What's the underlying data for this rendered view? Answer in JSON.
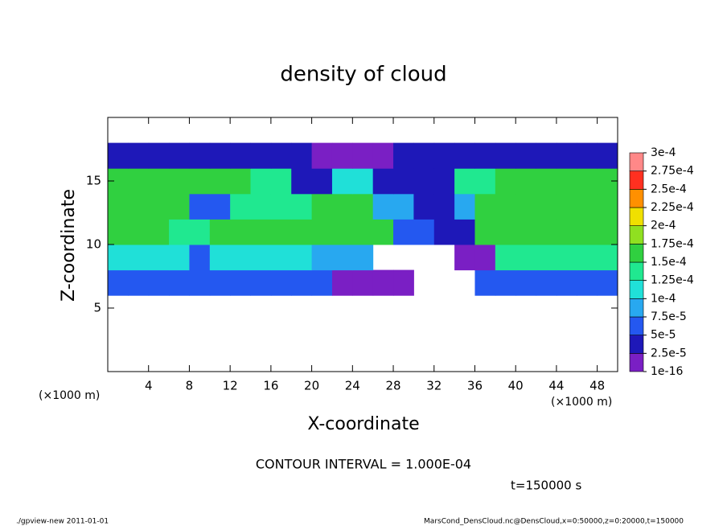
{
  "chart_data": {
    "type": "heatmap",
    "title": "density of cloud",
    "xlabel": "X-coordinate",
    "ylabel": "Z-coordinate",
    "x_unit_label": "(×1000 m)",
    "contour_note": "CONTOUR INTERVAL = 1.000E-04",
    "time_label": "t=150000 s",
    "footer_left": "./gpview-new  2011-01-01",
    "footer_right": "MarsCond_DensCloud.nc@DensCloud,x=0:50000,z=0:20000,t=150000",
    "xlim": [
      0,
      50
    ],
    "ylim": [
      0,
      20
    ],
    "xticks": [
      4,
      8,
      12,
      16,
      20,
      24,
      28,
      32,
      36,
      40,
      44,
      48
    ],
    "yticks": [
      5,
      10,
      15
    ],
    "x": [
      1,
      3,
      5,
      7,
      9,
      11,
      13,
      15,
      17,
      19,
      21,
      23,
      25,
      27,
      29,
      31,
      33,
      35,
      37,
      39,
      41,
      43,
      45,
      47,
      49
    ],
    "z": [
      1,
      3,
      5,
      7,
      9,
      11,
      13,
      15,
      17,
      19
    ],
    "values": [
      [
        null,
        null,
        null,
        null,
        null,
        null,
        null,
        null,
        null,
        null,
        null,
        null,
        null,
        null,
        null,
        null,
        null,
        null,
        null,
        null,
        null,
        null,
        null,
        null,
        null
      ],
      [
        null,
        null,
        null,
        null,
        null,
        null,
        null,
        null,
        null,
        null,
        null,
        null,
        null,
        null,
        null,
        null,
        null,
        null,
        null,
        null,
        null,
        null,
        null,
        null,
        null
      ],
      [
        null,
        null,
        null,
        null,
        null,
        null,
        null,
        null,
        null,
        null,
        null,
        null,
        null,
        null,
        null,
        null,
        null,
        null,
        null,
        null,
        null,
        null,
        null,
        null,
        null
      ],
      [
        5e-05,
        5e-05,
        5e-05,
        5e-05,
        5e-05,
        5e-05,
        5e-05,
        5e-05,
        5e-05,
        5e-05,
        5e-05,
        1e-16,
        1e-16,
        1e-16,
        1e-16,
        null,
        null,
        null,
        5e-05,
        5e-05,
        5e-05,
        5e-05,
        5e-05,
        5e-05,
        5e-05
      ],
      [
        0.0001,
        0.0001,
        0.0001,
        0.0001,
        5e-05,
        0.0001,
        0.0001,
        0.0001,
        0.0001,
        0.0001,
        7.5e-05,
        7.5e-05,
        7.5e-05,
        null,
        null,
        null,
        null,
        1e-16,
        1e-16,
        0.000125,
        0.000125,
        0.000125,
        0.000125,
        0.000125,
        0.000125
      ],
      [
        0.00015,
        0.00015,
        0.00015,
        0.000125,
        0.000125,
        0.00015,
        0.00015,
        0.00015,
        0.00015,
        0.00015,
        0.00015,
        0.00015,
        0.00015,
        0.00015,
        5e-05,
        5e-05,
        2.5e-05,
        2.5e-05,
        0.00015,
        0.00015,
        0.00015,
        0.00015,
        0.00015,
        0.00015,
        0.00015
      ],
      [
        0.00015,
        0.00015,
        0.00015,
        0.00015,
        5e-05,
        5e-05,
        0.000125,
        0.000125,
        0.000125,
        0.000125,
        0.00015,
        0.00015,
        0.00015,
        7.5e-05,
        7.5e-05,
        2.5e-05,
        2.5e-05,
        7.5e-05,
        0.00015,
        0.00015,
        0.00015,
        0.00015,
        0.00015,
        0.00015,
        0.00015
      ],
      [
        0.00015,
        0.00015,
        0.00015,
        0.00015,
        0.00015,
        0.00015,
        0.00015,
        0.000125,
        0.000125,
        2.5e-05,
        2.5e-05,
        0.0001,
        0.0001,
        2.5e-05,
        2.5e-05,
        2.5e-05,
        2.5e-05,
        0.000125,
        0.000125,
        0.00015,
        0.00015,
        0.00015,
        0.00015,
        0.00015,
        0.00015
      ],
      [
        2.5e-05,
        2.5e-05,
        2.5e-05,
        2.5e-05,
        2.5e-05,
        2.5e-05,
        2.5e-05,
        2.5e-05,
        2.5e-05,
        2.5e-05,
        1e-16,
        1e-16,
        1e-16,
        1e-16,
        2.5e-05,
        2.5e-05,
        2.5e-05,
        2.5e-05,
        2.5e-05,
        2.5e-05,
        2.5e-05,
        2.5e-05,
        2.5e-05,
        2.5e-05,
        2.5e-05
      ],
      [
        null,
        null,
        null,
        null,
        null,
        null,
        null,
        null,
        null,
        null,
        null,
        null,
        null,
        null,
        null,
        null,
        null,
        null,
        null,
        null,
        null,
        null,
        null,
        null,
        null
      ]
    ],
    "colorbar_ticks": [
      1e-16,
      {
        "value": 2.5e-05,
        "label": "2.5e-5"
      },
      {
        "value": 5e-05,
        "label": "5e-5"
      },
      {
        "value": 7.5e-05,
        "label": "7.5e-5"
      },
      {
        "value": 0.0001,
        "label": "1e-4"
      },
      {
        "value": 0.000125,
        "label": "1.25e-4"
      },
      {
        "value": 0.00015,
        "label": "1.5e-4"
      },
      {
        "value": 0.000175,
        "label": "1.75e-4"
      },
      {
        "value": 0.0002,
        "label": "2e-4"
      },
      {
        "value": 0.000225,
        "label": "2.25e-4"
      },
      {
        "value": 0.00025,
        "label": "2.5e-4"
      },
      {
        "value": 0.000275,
        "label": "2.75e-4"
      },
      {
        "value": 0.0003,
        "label": "3e-4"
      }
    ],
    "colorbar_colors": [
      "#7a1fc4",
      "#1e18b8",
      "#2458f0",
      "#28a8f0",
      "#20e0d8",
      "#20e890",
      "#30d040",
      "#90e020",
      "#f0e000",
      "#ff9000",
      "#ff3020",
      "#ff8888"
    ]
  }
}
